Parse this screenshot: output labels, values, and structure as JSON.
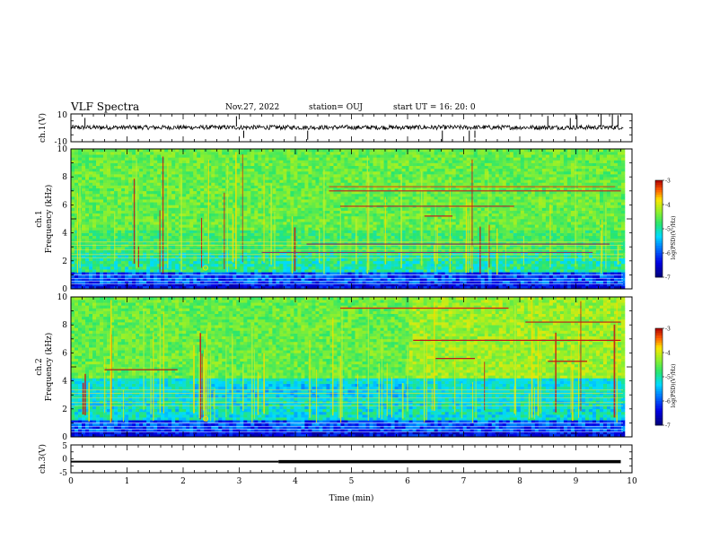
{
  "header": {
    "title": "VLF Spectra",
    "date": "Nov.27, 2022",
    "station": "station= OUJ",
    "start": "start  UT =   16: 20: 0"
  },
  "chart_data": [
    {
      "type": "line",
      "name": "ch1-waveform",
      "ylabel": "ch.1(V)",
      "ylim": [
        -10,
        10
      ],
      "yticks": [
        "10",
        "-10"
      ],
      "xlim": [
        0,
        10
      ],
      "baseline": 0
    },
    {
      "type": "heatmap",
      "name": "ch1-spectrogram",
      "ylabel": "ch.1\nFrequency (kHz)",
      "ylabel_line1": "ch.1",
      "ylabel_line2": "Frequency (kHz)",
      "ylim": [
        0,
        10
      ],
      "yticks": [
        "0",
        "2",
        "4",
        "6",
        "8",
        "10"
      ],
      "xlim": [
        0,
        10
      ],
      "colorbar": {
        "label": "log(PSD)(V²/Hz)",
        "range": [
          -7,
          -3
        ],
        "ticks": [
          "-3",
          "-4",
          "-5",
          "-6",
          "-7"
        ]
      }
    },
    {
      "type": "heatmap",
      "name": "ch2-spectrogram",
      "ylabel_line1": "ch.2",
      "ylabel_line2": "Frequency (kHz)",
      "ylim": [
        0,
        10
      ],
      "yticks": [
        "0",
        "2",
        "4",
        "6",
        "8",
        "10"
      ],
      "xlim": [
        0,
        10
      ],
      "colorbar": {
        "label": "log(PSD)(V²/Hz)",
        "range": [
          -7,
          -3
        ],
        "ticks": [
          "-3",
          "-4",
          "-5",
          "-6",
          "-7"
        ]
      }
    },
    {
      "type": "line",
      "name": "ch3-waveform",
      "ylabel": "ch.3(V)",
      "ylim": [
        -5,
        5
      ],
      "yticks": [
        "5",
        "0",
        "-5"
      ],
      "xlim": [
        0,
        10
      ],
      "xlabel": "Time (min)",
      "xticks": [
        "0",
        "1",
        "2",
        "3",
        "4",
        "5",
        "6",
        "7",
        "8",
        "9",
        "10"
      ],
      "level": -1,
      "data_end_min": 9.8,
      "thick_from_min": 3.7
    }
  ]
}
